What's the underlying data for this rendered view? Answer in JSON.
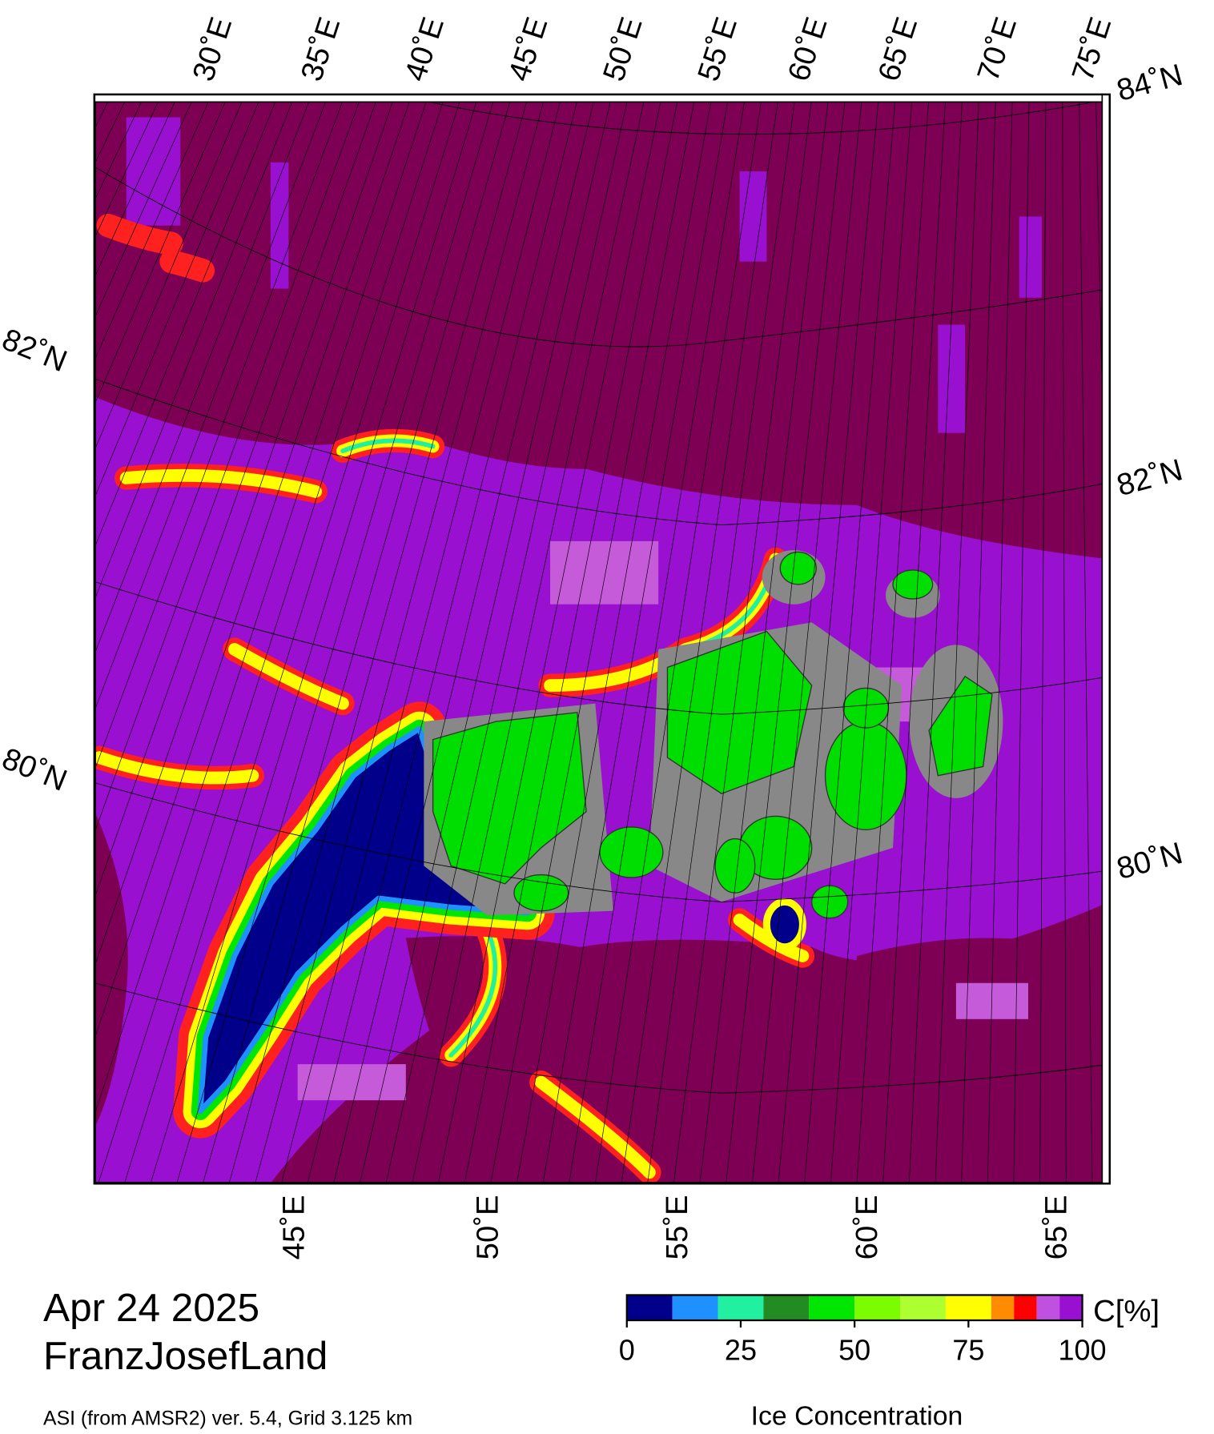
{
  "map": {
    "top_lon_labels": [
      "30˚E",
      "35˚E",
      "40˚E",
      "45˚E",
      "50˚E",
      "55˚E",
      "60˚E",
      "65˚E",
      "70˚E",
      "75˚E"
    ],
    "bottom_lon_labels": [
      "45˚E",
      "50˚E",
      "55˚E",
      "60˚E",
      "65˚E"
    ],
    "left_lat_labels": [
      "82˚N",
      "80˚N"
    ],
    "right_lat_labels": [
      "84˚N",
      "82˚N",
      "80˚N"
    ]
  },
  "date": "Apr 24 2025",
  "region": "FranzJosefLand",
  "source": "ASI (from AMSR2) ver. 5.4,  Grid 3.125 km",
  "colorbar": {
    "title": "Ice Concentration",
    "unit": "C[%]",
    "range": [
      0,
      100
    ],
    "ticks": [
      0,
      25,
      50,
      75,
      100
    ],
    "bounds": [
      0,
      10,
      20,
      30,
      40,
      50,
      60,
      70,
      80,
      85,
      90,
      95,
      100
    ],
    "colors": [
      "#00008b",
      "#1e90ff",
      "#20f0a0",
      "#228b22",
      "#00e600",
      "#7cfc00",
      "#adff2f",
      "#ffff00",
      "#ff8c00",
      "#ff0000",
      "#c050e0",
      "#9a10d0"
    ]
  }
}
